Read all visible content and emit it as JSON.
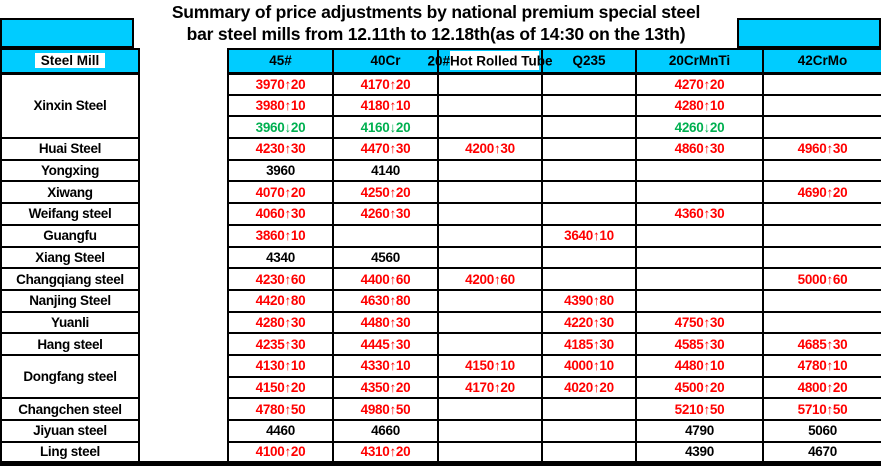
{
  "title": {
    "line1": "Summary of price adjustments by national premium special steel",
    "line2": "bar steel mills from 12.11th to 12.18th(as of 14:30 on the 13th)"
  },
  "columns": [
    "Steel Mill",
    "45#",
    "40Cr",
    "20#Hot Rolled Tube",
    "Q235",
    "20CrMnTi",
    "42CrMo"
  ],
  "colors": {
    "header_fill": "#00CCFF",
    "value": {
      "up": "#FF0000",
      "down": "#00B050",
      "flat": "#000000"
    }
  },
  "rows": [
    {
      "mill": "Xinxin Steel",
      "span": 3,
      "cells": [
        [
          "3970↑20",
          "up"
        ],
        [
          "4170↑20",
          "up"
        ],
        [
          "",
          ""
        ],
        [
          "",
          ""
        ],
        [
          "4270↑20",
          "up"
        ],
        [
          "",
          ""
        ]
      ]
    },
    {
      "cells": [
        [
          "3980↑10",
          "up"
        ],
        [
          "4180↑10",
          "up"
        ],
        [
          "",
          ""
        ],
        [
          "",
          ""
        ],
        [
          "4280↑10",
          "up"
        ],
        [
          "",
          ""
        ]
      ]
    },
    {
      "cells": [
        [
          "3960↓20",
          "down"
        ],
        [
          "4160↓20",
          "down"
        ],
        [
          "",
          ""
        ],
        [
          "",
          ""
        ],
        [
          "4260↓20",
          "down"
        ],
        [
          "",
          ""
        ]
      ]
    },
    {
      "mill": "Huai Steel",
      "cells": [
        [
          "4230↑30",
          "up"
        ],
        [
          "4470↑30",
          "up"
        ],
        [
          "4200↑30",
          "up"
        ],
        [
          "",
          ""
        ],
        [
          "4860↑30",
          "up"
        ],
        [
          "4960↑30",
          "up"
        ]
      ]
    },
    {
      "mill": "Yongxing",
      "cells": [
        [
          "3960",
          "flat"
        ],
        [
          "4140",
          "flat"
        ],
        [
          "",
          ""
        ],
        [
          "",
          ""
        ],
        [
          "",
          ""
        ],
        [
          "",
          ""
        ]
      ]
    },
    {
      "mill": "Xiwang",
      "cells": [
        [
          "4070↑20",
          "up"
        ],
        [
          "4250↑20",
          "up"
        ],
        [
          "",
          ""
        ],
        [
          "",
          ""
        ],
        [
          "",
          ""
        ],
        [
          "4690↑20",
          "up"
        ]
      ]
    },
    {
      "mill": "Weifang steel",
      "cells": [
        [
          "4060↑30",
          "up"
        ],
        [
          "4260↑30",
          "up"
        ],
        [
          "",
          ""
        ],
        [
          "",
          ""
        ],
        [
          "4360↑30",
          "up"
        ],
        [
          "",
          ""
        ]
      ]
    },
    {
      "mill": "Guangfu",
      "cells": [
        [
          "3860↑10",
          "up"
        ],
        [
          "",
          ""
        ],
        [
          "",
          ""
        ],
        [
          "3640↑10",
          "up"
        ],
        [
          "",
          ""
        ],
        [
          "",
          ""
        ]
      ]
    },
    {
      "mill": "Xiang Steel",
      "cells": [
        [
          "4340",
          "flat"
        ],
        [
          "4560",
          "flat"
        ],
        [
          "",
          ""
        ],
        [
          "",
          ""
        ],
        [
          "",
          ""
        ],
        [
          "",
          ""
        ]
      ]
    },
    {
      "mill": "Changqiang steel",
      "cells": [
        [
          "4230↑60",
          "up"
        ],
        [
          "4400↑60",
          "up"
        ],
        [
          "4200↑60",
          "up"
        ],
        [
          "",
          ""
        ],
        [
          "",
          ""
        ],
        [
          "5000↑60",
          "up"
        ]
      ]
    },
    {
      "mill": "Nanjing Steel",
      "cells": [
        [
          "4420↑80",
          "up"
        ],
        [
          "4630↑80",
          "up"
        ],
        [
          "",
          ""
        ],
        [
          "4390↑80",
          "up"
        ],
        [
          "",
          ""
        ],
        [
          "",
          ""
        ]
      ]
    },
    {
      "mill": "Yuanli",
      "cells": [
        [
          "4280↑30",
          "up"
        ],
        [
          "4480↑30",
          "up"
        ],
        [
          "",
          ""
        ],
        [
          "4220↑30",
          "up"
        ],
        [
          "4750↑30",
          "up"
        ],
        [
          "",
          ""
        ]
      ]
    },
    {
      "mill": "Hang steel",
      "cells": [
        [
          "4235↑30",
          "up"
        ],
        [
          "4445↑30",
          "up"
        ],
        [
          "",
          ""
        ],
        [
          "4185↑30",
          "up"
        ],
        [
          "4585↑30",
          "up"
        ],
        [
          "4685↑30",
          "up"
        ]
      ]
    },
    {
      "mill": "Dongfang steel",
      "span": 2,
      "cells": [
        [
          "4130↑10",
          "up"
        ],
        [
          "4330↑10",
          "up"
        ],
        [
          "4150↑10",
          "up"
        ],
        [
          "4000↑10",
          "up"
        ],
        [
          "4480↑10",
          "up"
        ],
        [
          "4780↑10",
          "up"
        ]
      ]
    },
    {
      "cells": [
        [
          "4150↑20",
          "up"
        ],
        [
          "4350↑20",
          "up"
        ],
        [
          "4170↑20",
          "up"
        ],
        [
          "4020↑20",
          "up"
        ],
        [
          "4500↑20",
          "up"
        ],
        [
          "4800↑20",
          "up"
        ]
      ]
    },
    {
      "mill": "Changchen steel",
      "cells": [
        [
          "4780↑50",
          "up"
        ],
        [
          "4980↑50",
          "up"
        ],
        [
          "",
          ""
        ],
        [
          "",
          ""
        ],
        [
          "5210↑50",
          "up"
        ],
        [
          "5710↑50",
          "up"
        ]
      ]
    },
    {
      "mill": "Jiyuan steel",
      "cells": [
        [
          "4460",
          "flat"
        ],
        [
          "4660",
          "flat"
        ],
        [
          "",
          ""
        ],
        [
          "",
          ""
        ],
        [
          "4790",
          "flat"
        ],
        [
          "5060",
          "flat"
        ]
      ]
    },
    {
      "mill": "Ling steel",
      "cells": [
        [
          "4100↑20",
          "up"
        ],
        [
          "4310↑20",
          "up"
        ],
        [
          "",
          ""
        ],
        [
          "",
          ""
        ],
        [
          "4390",
          "flat"
        ],
        [
          "4670",
          "flat"
        ]
      ]
    }
  ]
}
